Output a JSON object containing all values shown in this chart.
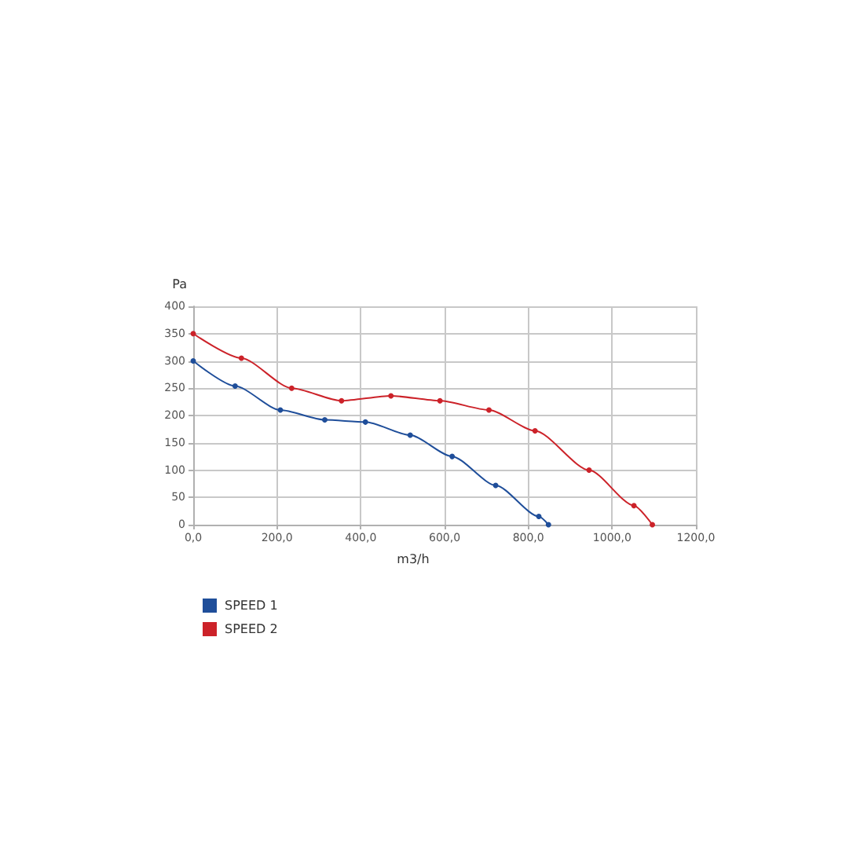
{
  "chart_data": {
    "type": "line",
    "xlabel": "m3/h",
    "ylabel": "Pa",
    "series": [
      {
        "name": "SPEED 1",
        "color": "#1f4e9a",
        "x": [
          0,
          100,
          208,
          314,
          411,
          518,
          618,
          722,
          825,
          848
        ],
        "values": [
          300,
          254,
          210,
          192,
          188,
          164,
          125,
          72,
          15,
          0
        ]
      },
      {
        "name": "SPEED 2",
        "color": "#cc2229",
        "x": [
          0,
          115,
          235,
          354,
          472,
          589,
          706,
          816,
          945,
          1052,
          1096
        ],
        "values": [
          350,
          305,
          250,
          227,
          236,
          227,
          210,
          172,
          100,
          35,
          0
        ]
      }
    ],
    "xlim": [
      0,
      1200
    ],
    "xticks": [
      {
        "value": 0,
        "label": "0,0"
      },
      {
        "value": 200,
        "label": "200,0"
      },
      {
        "value": 400,
        "label": "400,0"
      },
      {
        "value": 600,
        "label": "600,0"
      },
      {
        "value": 800,
        "label": "800,0"
      },
      {
        "value": 1000,
        "label": "1000,0"
      },
      {
        "value": 1200,
        "label": "1200,0"
      }
    ],
    "ylim": [
      0,
      400
    ],
    "yticks": [
      0,
      50,
      100,
      150,
      200,
      250,
      300,
      350,
      400
    ],
    "grid": true,
    "legend": "bottom left",
    "marker": "circle"
  }
}
